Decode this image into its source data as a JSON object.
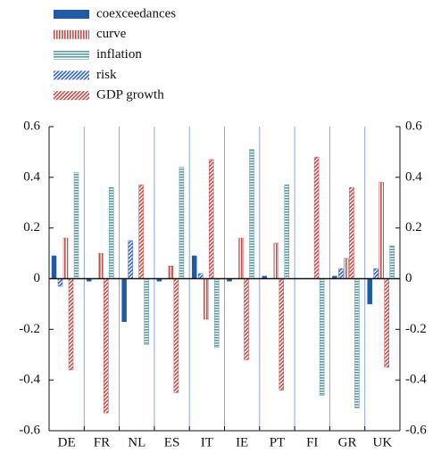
{
  "chart_data": {
    "type": "bar",
    "categories": [
      "DE",
      "FR",
      "NL",
      "ES",
      "IT",
      "IE",
      "PT",
      "FI",
      "GR",
      "UK"
    ],
    "series": [
      {
        "name": "coexceedances",
        "color": "#1f5aa6",
        "values": [
          0.09,
          -0.01,
          -0.17,
          -0.01,
          0.09,
          -0.01,
          0.01,
          0,
          0.01,
          -0.1
        ]
      },
      {
        "name": "curve",
        "color": "#c0504d",
        "values": [
          0.16,
          0.1,
          0,
          0.05,
          -0.16,
          0.16,
          0.14,
          0,
          0.08,
          0.38
        ]
      },
      {
        "name": "inflation",
        "color": "#5b9aa8",
        "values": [
          0.42,
          0.36,
          -0.26,
          0.44,
          -0.27,
          0.51,
          0.37,
          -0.46,
          -0.51,
          0.13
        ]
      },
      {
        "name": "risk",
        "color": "#3563c2",
        "values": [
          -0.03,
          0,
          0.15,
          0,
          0.02,
          0,
          0,
          0,
          0.04,
          0.04
        ]
      },
      {
        "name": "GDP growth",
        "color": "#c0504d",
        "values": [
          -0.36,
          -0.53,
          0.37,
          -0.45,
          0.47,
          -0.32,
          -0.44,
          0.48,
          0.36,
          -0.35
        ]
      }
    ],
    "ylim": [
      -0.6,
      0.6
    ],
    "yticks": [
      -0.6,
      -0.4,
      -0.2,
      0,
      0.2,
      0.4,
      0.6
    ],
    "y2lim": [
      -0.6,
      0.6
    ],
    "y2ticks": [
      -0.6,
      -0.4,
      -0.2,
      0,
      0.2,
      0.4,
      0.6
    ],
    "grid": true
  }
}
